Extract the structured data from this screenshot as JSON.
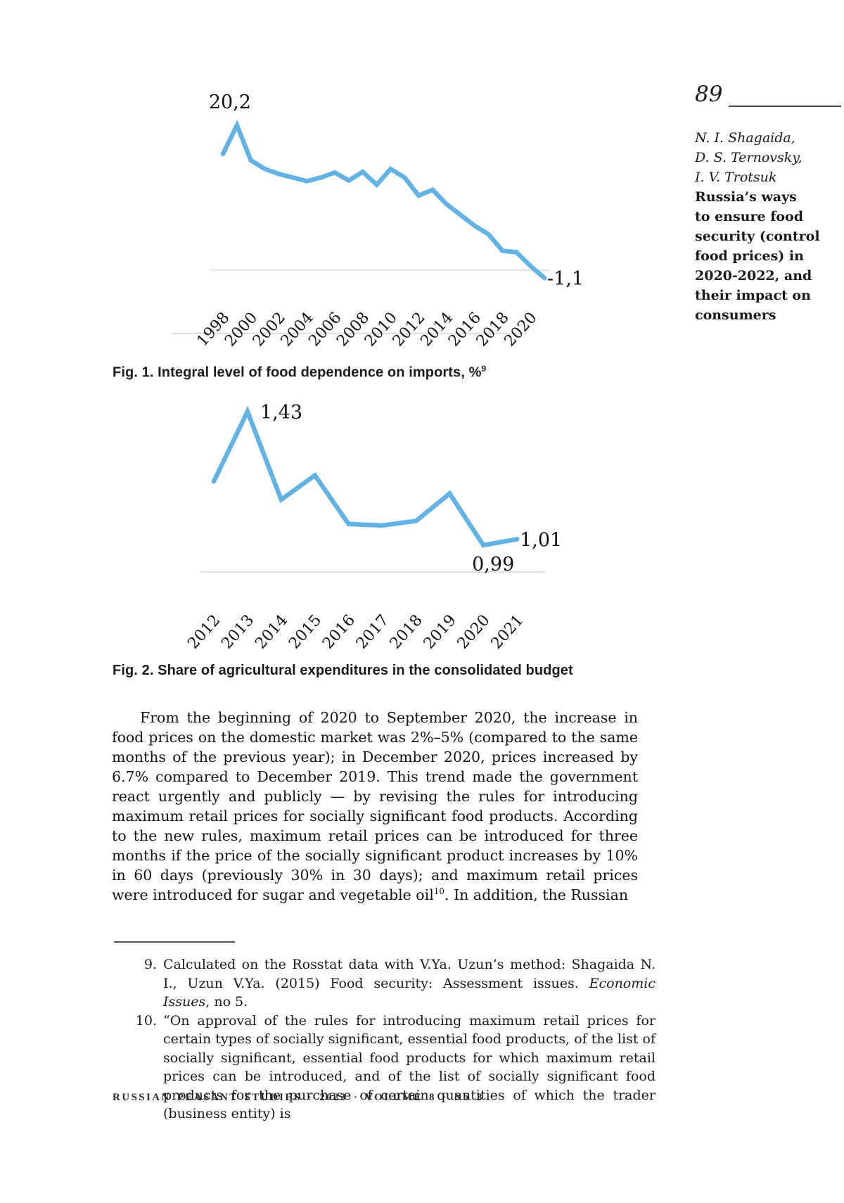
{
  "sidebar": {
    "page_number": "89",
    "authors": "N. I. Shagaida,\nD. S. Ternovsky,\nI. V. Trotsuk",
    "title": "Russia’s ways\nto ensure food\nsecurity (control\nfood prices) in\n2020-2022, and\ntheir impact on\nconsumers"
  },
  "figures": [
    {
      "caption_segments": [
        {
          "t": "Fig. 1. Integral level of food dependence on imports, %"
        },
        {
          "t": "9",
          "sup": true
        }
      ]
    },
    {
      "caption_segments": [
        {
          "t": "Fig. 2. Share of agricultural expenditures in the consolidated budget"
        }
      ]
    }
  ],
  "body": {
    "paragraph_segments": [
      {
        "t": "From the beginning of 2020 to September 2020, the increase in food prices on the domestic market was 2%–5% (compared to the same months of the previous year); in December 2020, prices increased by 6.7% compared to December 2019. This trend made the government react urgently and publicly — by revising the rules for introducing maximum retail prices for socially significant food products. According to the new rules, maximum retail prices can be introduced for three months if the price of the socially significant product increases by 10% in 60 days (previously 30% in 30 days); and maximum retail prices were introduced for sugar and vegetable oil"
      },
      {
        "t": "10",
        "sup": true
      },
      {
        "t": ". In addition, the Russian"
      }
    ]
  },
  "footnotes": [
    {
      "num": "9.",
      "segments": [
        {
          "t": "Calculated on the Rosstat data with V.Ya. Uzun’s method: Shagaida N. I., Uzun V.Ya. (2015) Food security: Assessment issues. "
        },
        {
          "t": "Economic Issues",
          "italic": true
        },
        {
          "t": ", no 5."
        }
      ]
    },
    {
      "num": "10.",
      "segments": [
        {
          "t": "“On approval of the rules for introducing maximum retail prices for certain types of socially significant, essential food products, of the list of socially significant, essential food products for which maximum retail prices can be introduced, and of the list of socially significant food products for the purchase of certain quantities of which the trader (business entity) is"
        }
      ]
    }
  ],
  "footer": {
    "text": "RUSSIAN PEASANT STUDIES · 2023 · VOLUME 8 · No 3"
  },
  "chart_data": [
    {
      "type": "line",
      "title": "Fig. 1. Integral level of food dependence on imports, %",
      "x": [
        1998,
        1999,
        2000,
        2001,
        2002,
        2003,
        2004,
        2005,
        2006,
        2007,
        2008,
        2009,
        2010,
        2011,
        2012,
        2013,
        2014,
        2015,
        2016,
        2017,
        2018,
        2019,
        2020,
        2021
      ],
      "values": [
        16.2,
        20.2,
        15.3,
        14.1,
        13.4,
        12.9,
        12.4,
        12.9,
        13.6,
        12.5,
        13.7,
        11.9,
        14.1,
        12.9,
        10.4,
        11.2,
        9.2,
        7.7,
        6.2,
        5.0,
        2.7,
        2.5,
        0.6,
        -1.1
      ],
      "x_tick_labels": [
        "1998",
        "2000",
        "2002",
        "2004",
        "2006",
        "2008",
        "2010",
        "2012",
        "2014",
        "2016",
        "2018",
        "2020"
      ],
      "annotations": [
        {
          "x": 1999,
          "label": "20,2",
          "position": "above"
        },
        {
          "x": 2021,
          "label": "-1,1",
          "position": "right"
        }
      ],
      "line_color": "#62b2e4",
      "ylim": [
        -2,
        21
      ],
      "grid": false,
      "legend": "none"
    },
    {
      "type": "line",
      "title": "Fig. 2. Share of agricultural expenditures in the consolidated budget",
      "x": [
        2012,
        2013,
        2014,
        2015,
        2016,
        2017,
        2018,
        2019,
        2020,
        2021
      ],
      "values": [
        1.2,
        1.43,
        1.14,
        1.22,
        1.06,
        1.055,
        1.07,
        1.16,
        0.99,
        1.01
      ],
      "x_tick_labels": [
        "2012",
        "2013",
        "2014",
        "2015",
        "2016",
        "2017",
        "2018",
        "2019",
        "2020",
        "2021"
      ],
      "annotations": [
        {
          "x": 2013,
          "label": "1,43",
          "position": "right-above"
        },
        {
          "x": 2020,
          "label": "0,99",
          "position": "below"
        },
        {
          "x": 2021,
          "label": "1,01",
          "position": "right"
        }
      ],
      "line_color": "#62b2e4",
      "ylim": [
        0.95,
        1.5
      ],
      "grid": false,
      "legend": "none"
    }
  ]
}
